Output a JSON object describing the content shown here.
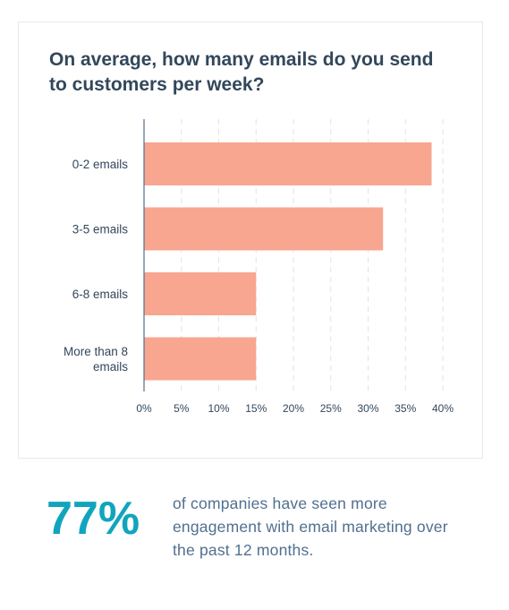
{
  "chart_data": {
    "type": "bar",
    "orientation": "horizontal",
    "title": "On average, how many emails do you send to customers per week?",
    "categories": [
      "0-2 emails",
      "3-5 emails",
      "6-8 emails",
      "More than 8 emails"
    ],
    "category_lines": [
      [
        "0-2 emails"
      ],
      [
        "3-5 emails"
      ],
      [
        "6-8 emails"
      ],
      [
        "More than 8",
        "emails"
      ]
    ],
    "values": [
      38.5,
      32,
      15,
      15
    ],
    "xlim": [
      0,
      40
    ],
    "ticks": [
      0,
      5,
      10,
      15,
      20,
      25,
      30,
      35,
      40
    ],
    "tick_labels": [
      "0%",
      "5%",
      "10%",
      "15%",
      "20%",
      "25%",
      "30%",
      "35%",
      "40%"
    ],
    "xlabel": "",
    "ylabel": "",
    "grid": "vertical dashed",
    "bar_color": "#f8a68f",
    "axis_color": "#516f90",
    "grid_color": "#dfe3eb"
  },
  "stat": {
    "value": "77%",
    "text": "of companies have seen more engagement with email marketing over the past 12 months.",
    "color": "#10a5bd"
  }
}
